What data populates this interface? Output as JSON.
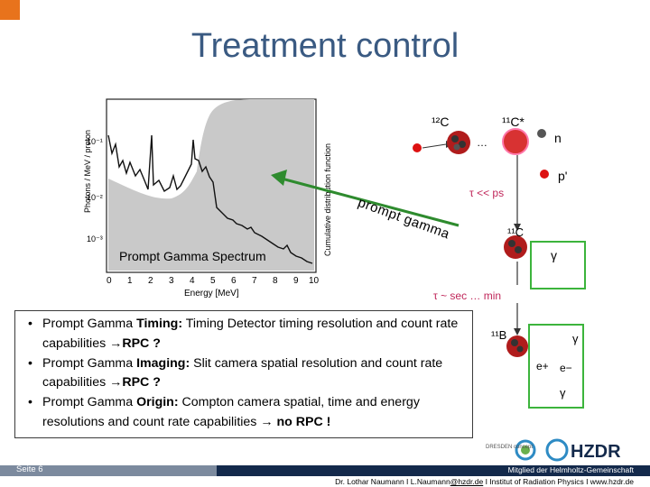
{
  "slide": {
    "title": "Treatment control",
    "footer": {
      "page": "Seite 6",
      "member": "Mitglied der Helmholtz-Gemeinschaft",
      "contact_pre": "Dr. Lothar Naumann  I  L.Naumann",
      "contact_email": "@hzdr.de",
      "contact_post": "  I  Institut of Radiation Physics  I  www.hzdr.de"
    },
    "logos": {
      "dresden": "DRESDEN concept",
      "hzdr": "HZDR"
    }
  },
  "spectrum": {
    "label": "Prompt Gamma Spectrum",
    "ylabel": "Photons / MeV / proton",
    "y2label": "Cumulative distribution function",
    "xlabel": "Energy [MeV]",
    "xticks": [
      "0",
      "1",
      "2",
      "3",
      "4",
      "5",
      "6",
      "7",
      "8",
      "9",
      "10"
    ],
    "yticks": [
      "10⁻¹",
      "10⁻²",
      "10⁻³"
    ]
  },
  "diagram": {
    "arrow_label": "prompt gamma",
    "c12": "¹²C",
    "c11star": "¹¹C*",
    "n": "n",
    "p": "p'",
    "tau1": "τ << ps",
    "c11": "¹¹C",
    "gamma": "γ",
    "tau2": "τ ~ sec … min",
    "b11": "¹¹B",
    "eplus": "e+",
    "eminus": "e−",
    "gamma2": "γ",
    "gamma3": "γ",
    "dots": "…"
  },
  "bullets": [
    {
      "pre": "Prompt Gamma ",
      "bold": "Timing:",
      "text": " Timing Detector  timing resolution and count rate capabilities  ",
      "tail": "→RPC ?"
    },
    {
      "pre": "Prompt Gamma ",
      "bold": "Imaging:",
      "text": " Slit camera spatial resolution and count rate capabilities  ",
      "tail": "→RPC ?"
    },
    {
      "pre": "Prompt Gamma ",
      "bold": "Origin:",
      "text": " Compton camera spatial, time  and energy  resolutions and count  rate capabilities ",
      "tail": "→ no RPC !"
    }
  ]
}
